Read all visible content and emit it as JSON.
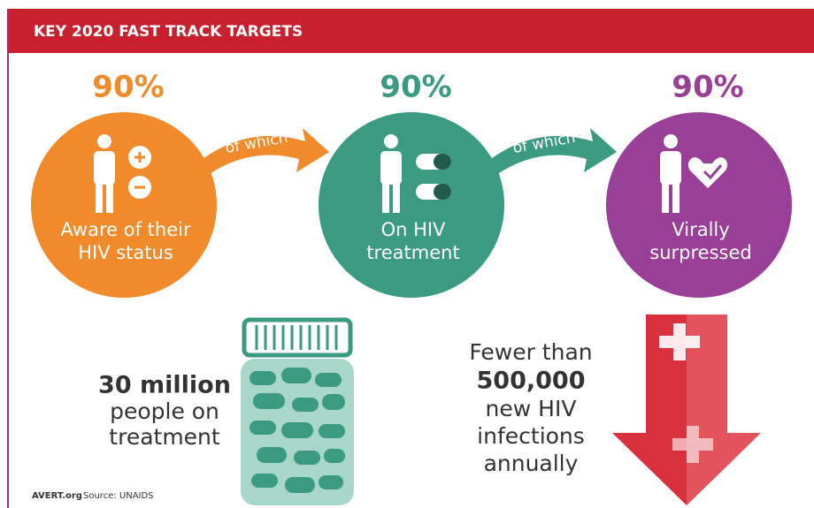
{
  "header": {
    "title": "KEY 2020 FAST TRACK TARGETS"
  },
  "targets": [
    {
      "percent": "90%",
      "label": [
        "Aware of their",
        "HIV status"
      ]
    },
    {
      "percent": "90%",
      "label": [
        "On HIV",
        "treatment"
      ]
    },
    {
      "percent": "90%",
      "label": [
        "Virally",
        "surpressed"
      ]
    }
  ],
  "connectors": [
    "of which",
    "of which"
  ],
  "treatment": {
    "headline": "30 million",
    "lines": [
      "people on",
      "treatment"
    ]
  },
  "infections": {
    "intro": "Fewer than",
    "headline": "500,000",
    "lines": [
      "new HIV",
      "infections",
      "annually"
    ]
  },
  "footer": {
    "brand": "AVERT.org",
    "source": "Source: UNAIDS"
  }
}
